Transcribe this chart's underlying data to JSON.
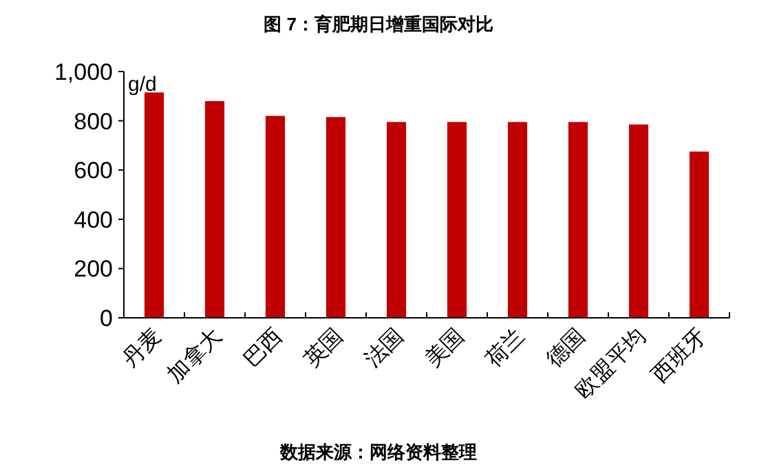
{
  "chart_data": {
    "type": "bar",
    "title": "图 7：育肥期日增重国际对比",
    "ylabel": "g/d",
    "categories": [
      "丹麦",
      "加拿大",
      "巴西",
      "英国",
      "法国",
      "美国",
      "荷兰",
      "德国",
      "欧盟平均",
      "西班牙"
    ],
    "values": [
      915,
      880,
      820,
      815,
      795,
      795,
      795,
      795,
      785,
      675
    ],
    "color": "#c00000",
    "ylim": [
      0,
      1000
    ],
    "yticks": [
      0,
      {
        "value": 200,
        "label": "200"
      },
      {
        "value": 400,
        "label": "400"
      },
      {
        "value": 600,
        "label": "600"
      },
      {
        "value": 800,
        "label": "800"
      },
      {
        "value": 1000,
        "label": "1,000"
      }
    ],
    "grid": false,
    "annotations": [
      "数据来源：网络资料整理"
    ]
  }
}
